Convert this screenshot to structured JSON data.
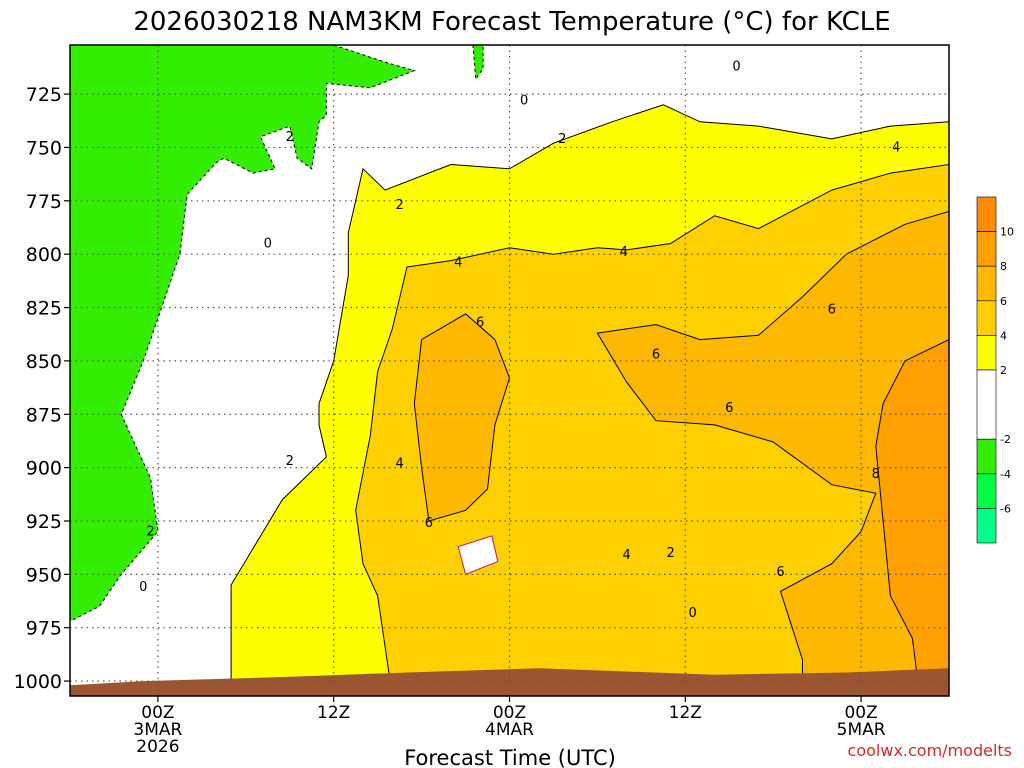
{
  "chart_data": {
    "type": "contour",
    "title": "2026030218 NAM3KM Forecast Temperature (°C) for KCLE",
    "xlabel": "Forecast Time (UTC)",
    "ylabel": "",
    "credit": "coolwx.com/modelts",
    "x_ticks": [
      {
        "line1": "00Z",
        "line2": "3MAR",
        "line3": "2026",
        "hour": 6
      },
      {
        "line1": "12Z",
        "line2": "",
        "line3": "",
        "hour": 18
      },
      {
        "line1": "00Z",
        "line2": "4MAR",
        "line3": "",
        "hour": 30
      },
      {
        "line1": "12Z",
        "line2": "",
        "line3": "",
        "hour": 42
      },
      {
        "line1": "00Z",
        "line2": "5MAR",
        "line3": "",
        "hour": 54
      }
    ],
    "xlim": [
      0,
      60
    ],
    "y_ticks": [
      1000,
      975,
      950,
      925,
      900,
      875,
      850,
      825,
      800,
      775,
      750,
      725
    ],
    "ylim": [
      1007,
      702
    ],
    "colorbar": {
      "ticks": [
        10,
        8,
        6,
        4,
        2,
        -2,
        -4,
        -6
      ],
      "bins": [
        {
          "from": 10,
          "to": 12,
          "color": "#ff8c00"
        },
        {
          "from": 8,
          "to": 10,
          "color": "#ffa000"
        },
        {
          "from": 6,
          "to": 8,
          "color": "#ffb800"
        },
        {
          "from": 4,
          "to": 6,
          "color": "#ffd000"
        },
        {
          "from": 2,
          "to": 4,
          "color": "#ffff00"
        },
        {
          "from": -2,
          "to": 2,
          "color": "#ffffff"
        },
        {
          "from": -4,
          "to": -2,
          "color": "#33ee00"
        },
        {
          "from": -6,
          "to": -4,
          "color": "#00ff44"
        },
        {
          "from": -8,
          "to": -6,
          "color": "#00ff88"
        }
      ]
    },
    "contour_labels": [
      {
        "text": "0",
        "hour": 45.5,
        "p": 712
      },
      {
        "text": "0",
        "hour": 31.0,
        "p": 728
      },
      {
        "text": "2",
        "hour": 15.0,
        "p": 745
      },
      {
        "text": "2",
        "hour": 33.6,
        "p": 746
      },
      {
        "text": "4",
        "hour": 56.4,
        "p": 750
      },
      {
        "text": "2",
        "hour": 22.5,
        "p": 777
      },
      {
        "text": "0",
        "hour": 13.5,
        "p": 795
      },
      {
        "text": "4",
        "hour": 26.5,
        "p": 804
      },
      {
        "text": "4",
        "hour": 37.8,
        "p": 799
      },
      {
        "text": "6",
        "hour": 52.0,
        "p": 826
      },
      {
        "text": "6",
        "hour": 28.0,
        "p": 832
      },
      {
        "text": "6",
        "hour": 40.0,
        "p": 847
      },
      {
        "text": "6",
        "hour": 45.0,
        "p": 872
      },
      {
        "text": "2",
        "hour": 15.0,
        "p": 897
      },
      {
        "text": "4",
        "hour": 22.5,
        "p": 898
      },
      {
        "text": "8",
        "hour": 55.0,
        "p": 903
      },
      {
        "text": "6",
        "hour": 24.5,
        "p": 926
      },
      {
        "text": "2",
        "hour": 5.5,
        "p": 930
      },
      {
        "text": "4",
        "hour": 38.0,
        "p": 941
      },
      {
        "text": "2",
        "hour": 41.0,
        "p": 940
      },
      {
        "text": "6",
        "hour": 48.5,
        "p": 949
      },
      {
        "text": "0",
        "hour": 5.0,
        "p": 956
      },
      {
        "text": "0",
        "hour": 42.5,
        "p": 968
      }
    ],
    "regions": [
      {
        "name": "green-cold-region",
        "color": "#33ee00",
        "pts": [
          [
            0,
            702
          ],
          [
            18,
            702
          ],
          [
            21.5,
            710
          ],
          [
            23.5,
            714
          ],
          [
            20.5,
            722
          ],
          [
            17.5,
            720
          ],
          [
            17.5,
            735
          ],
          [
            17,
            738
          ],
          [
            16.5,
            760
          ],
          [
            15.5,
            755
          ],
          [
            15,
            740
          ],
          [
            13,
            745
          ],
          [
            14,
            760
          ],
          [
            12.5,
            762
          ],
          [
            10.5,
            755
          ],
          [
            10,
            757
          ],
          [
            8,
            772
          ],
          [
            7.5,
            800
          ],
          [
            5,
            850
          ],
          [
            3.5,
            875
          ],
          [
            5.5,
            905
          ],
          [
            6,
            930
          ],
          [
            3.5,
            950
          ],
          [
            2,
            965
          ],
          [
            0,
            972
          ]
        ]
      },
      {
        "name": "green-cold-patch",
        "color": "#33ee00",
        "pts": [
          [
            27.5,
            702
          ],
          [
            28.2,
            702
          ],
          [
            28.2,
            713
          ],
          [
            27.7,
            718
          ]
        ]
      },
      {
        "name": "yellow-warm-region",
        "color": "#ffff00",
        "pts": [
          [
            20,
            760
          ],
          [
            21.5,
            770
          ],
          [
            26,
            758
          ],
          [
            30,
            760
          ],
          [
            33,
            748
          ],
          [
            37,
            738
          ],
          [
            40.5,
            730
          ],
          [
            43,
            738
          ],
          [
            47,
            740
          ],
          [
            52,
            746
          ],
          [
            56,
            740
          ],
          [
            60,
            738
          ],
          [
            60,
            1007
          ],
          [
            11,
            1007
          ],
          [
            11,
            980
          ],
          [
            11,
            955
          ],
          [
            14.5,
            915
          ],
          [
            17.5,
            895
          ],
          [
            17,
            880
          ],
          [
            17,
            870
          ],
          [
            18,
            850
          ],
          [
            18.5,
            830
          ],
          [
            19,
            810
          ],
          [
            19,
            790
          ]
        ]
      },
      {
        "name": "white-warm-gap",
        "color": "#ffffff",
        "pts": [
          [
            33,
            1007
          ],
          [
            33,
            970
          ],
          [
            38,
            965
          ],
          [
            40,
            958
          ],
          [
            44,
            960
          ],
          [
            47,
            970
          ],
          [
            49,
            985
          ],
          [
            49,
            1007
          ]
        ]
      },
      {
        "name": "gold-region-1",
        "color": "#ffd000",
        "pts": [
          [
            23,
            806
          ],
          [
            26,
            803
          ],
          [
            30,
            797
          ],
          [
            33,
            800
          ],
          [
            36,
            797
          ],
          [
            38,
            798
          ],
          [
            41,
            795
          ],
          [
            44,
            782
          ],
          [
            47,
            788
          ],
          [
            52,
            770
          ],
          [
            56,
            762
          ],
          [
            60,
            758
          ],
          [
            60,
            1007
          ],
          [
            22,
            1007
          ],
          [
            21,
            960
          ],
          [
            20,
            945
          ],
          [
            19.5,
            920
          ],
          [
            20.5,
            885
          ],
          [
            21,
            855
          ],
          [
            22,
            835
          ]
        ]
      },
      {
        "name": "orange-region-6-8",
        "color": "#ffb800",
        "pts": [
          [
            24,
            840
          ],
          [
            27,
            828
          ],
          [
            29,
            840
          ],
          [
            30,
            858
          ],
          [
            29,
            880
          ],
          [
            28.5,
            910
          ],
          [
            27,
            920
          ],
          [
            24.5,
            925
          ],
          [
            24,
            900
          ],
          [
            23.5,
            870
          ]
        ]
      },
      {
        "name": "orange-region-6-8-east",
        "color": "#ffb800",
        "pts": [
          [
            36,
            837
          ],
          [
            40,
            833
          ],
          [
            43,
            840
          ],
          [
            47,
            838
          ],
          [
            50,
            820
          ],
          [
            53,
            800
          ],
          [
            57,
            786
          ],
          [
            60,
            780
          ],
          [
            60,
            1007
          ],
          [
            50,
            1007
          ],
          [
            50,
            990
          ],
          [
            48.5,
            958
          ],
          [
            52,
            945
          ],
          [
            54,
            930
          ],
          [
            55,
            912
          ],
          [
            52,
            908
          ],
          [
            48,
            888
          ],
          [
            44,
            880
          ],
          [
            40,
            878
          ],
          [
            38,
            860
          ]
        ]
      },
      {
        "name": "dark-orange-region-8-10",
        "color": "#ffa000",
        "pts": [
          [
            57,
            850
          ],
          [
            60,
            840
          ],
          [
            60,
            1007
          ],
          [
            58,
            1007
          ],
          [
            57.5,
            980
          ],
          [
            56,
            960
          ],
          [
            55.5,
            925
          ],
          [
            55,
            890
          ],
          [
            55.5,
            870
          ]
        ]
      },
      {
        "name": "white-yellow-gap",
        "color": "#ffffff",
        "pts": [
          [
            26.5,
            937
          ],
          [
            28.8,
            932
          ],
          [
            29.2,
            944
          ],
          [
            27,
            950
          ]
        ]
      },
      {
        "name": "ground",
        "color": "#9b5530",
        "pts": [
          [
            0,
            1007
          ],
          [
            0,
            1002
          ],
          [
            5,
            1000
          ],
          [
            15,
            998
          ],
          [
            23,
            996
          ],
          [
            32,
            994
          ],
          [
            44,
            997
          ],
          [
            53,
            996
          ],
          [
            60,
            994
          ],
          [
            60,
            1007
          ]
        ]
      }
    ]
  }
}
